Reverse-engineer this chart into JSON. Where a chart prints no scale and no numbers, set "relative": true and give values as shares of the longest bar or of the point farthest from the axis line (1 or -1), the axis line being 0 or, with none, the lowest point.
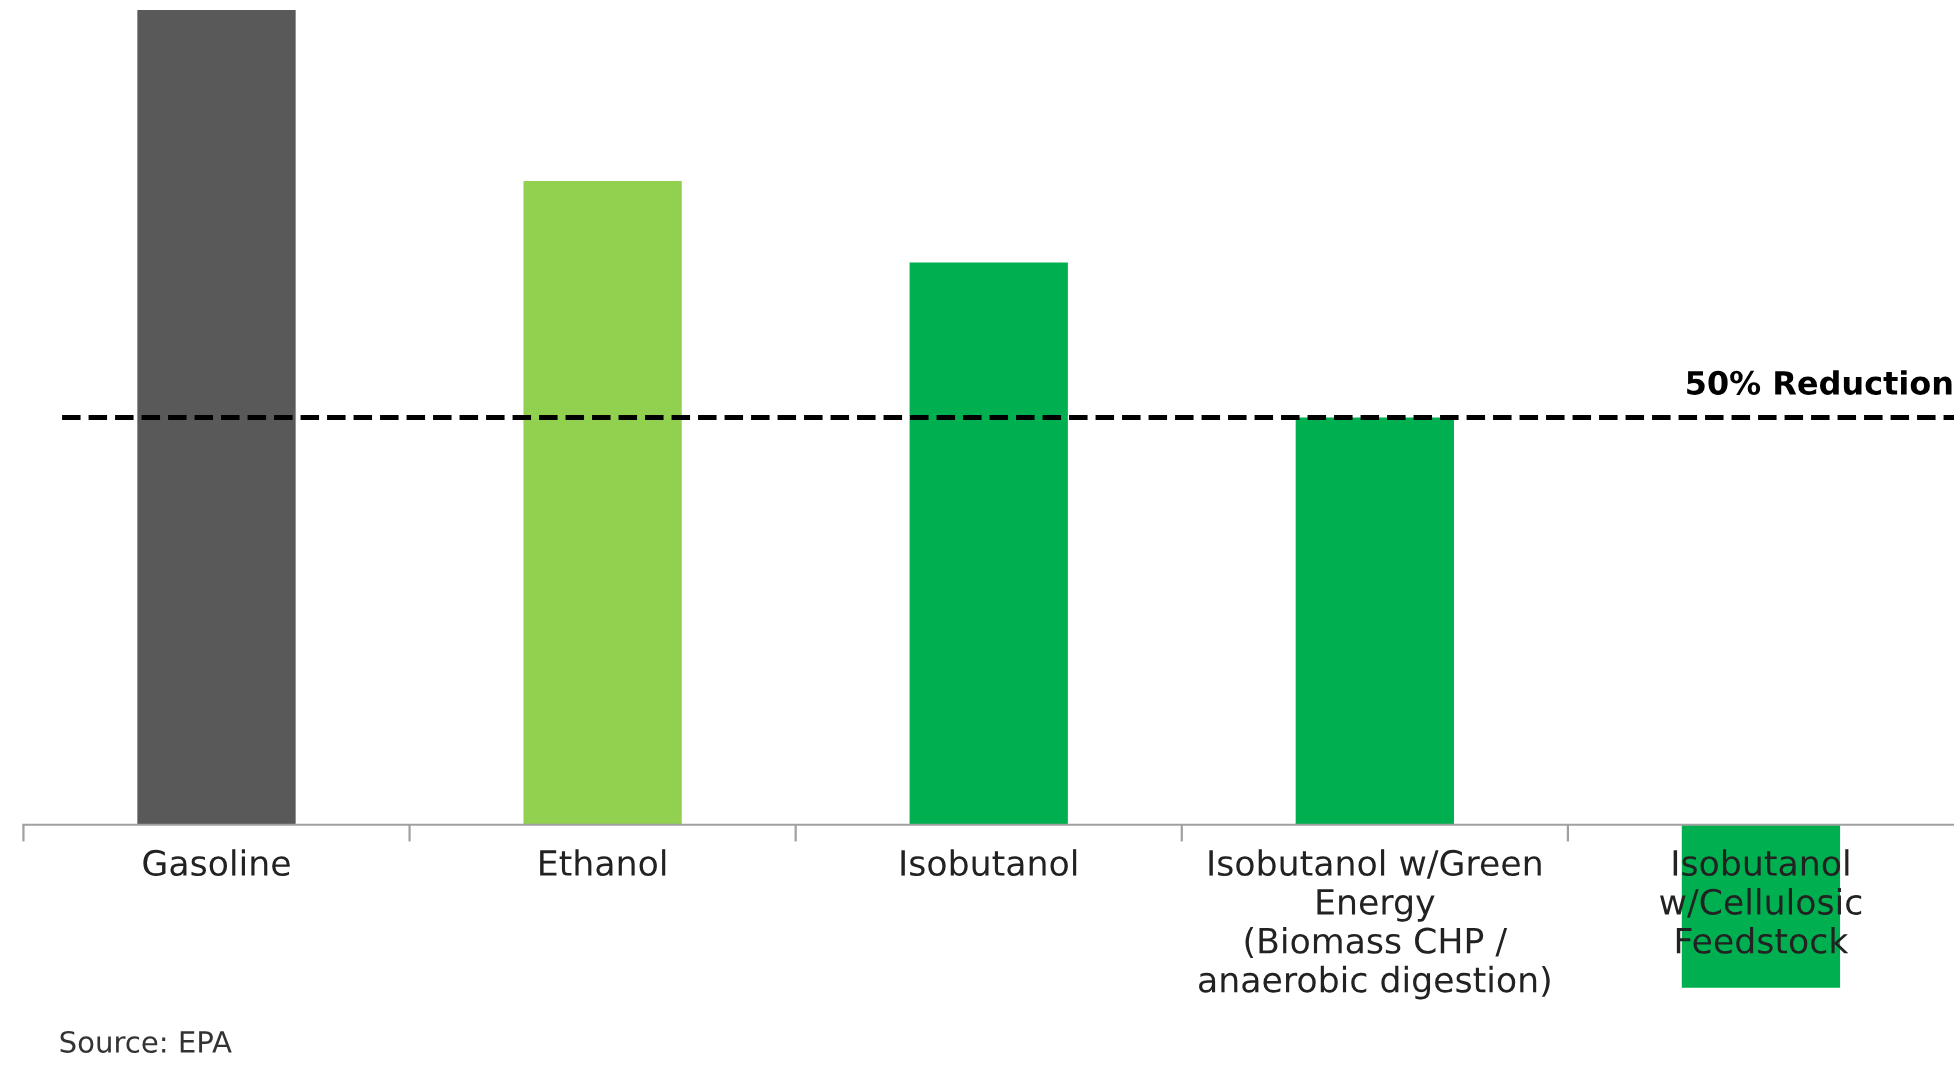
{
  "chart_data": {
    "type": "bar",
    "relative": true,
    "categories": [
      "Gasoline",
      "Ethanol",
      "Isobutanol",
      "Isobutanol w/Green\nEnergy\n(Biomass CHP /\nanaerobic digestion)",
      "Isobutanol\nw/Cellulosic\nFeedstock"
    ],
    "values": [
      1,
      0.79,
      0.69,
      0.5,
      -0.2
    ],
    "colors": [
      "#595959",
      "#92d050",
      "#00b050",
      "#00b050",
      "#00b050"
    ],
    "ref_lines": [
      {
        "axis": "y",
        "value": 0.5,
        "label": "50% Reduction",
        "color": "#000000",
        "line_style": "dashed"
      }
    ],
    "annotations": [
      "Source: EPA"
    ],
    "grid": false,
    "legend": false
  }
}
